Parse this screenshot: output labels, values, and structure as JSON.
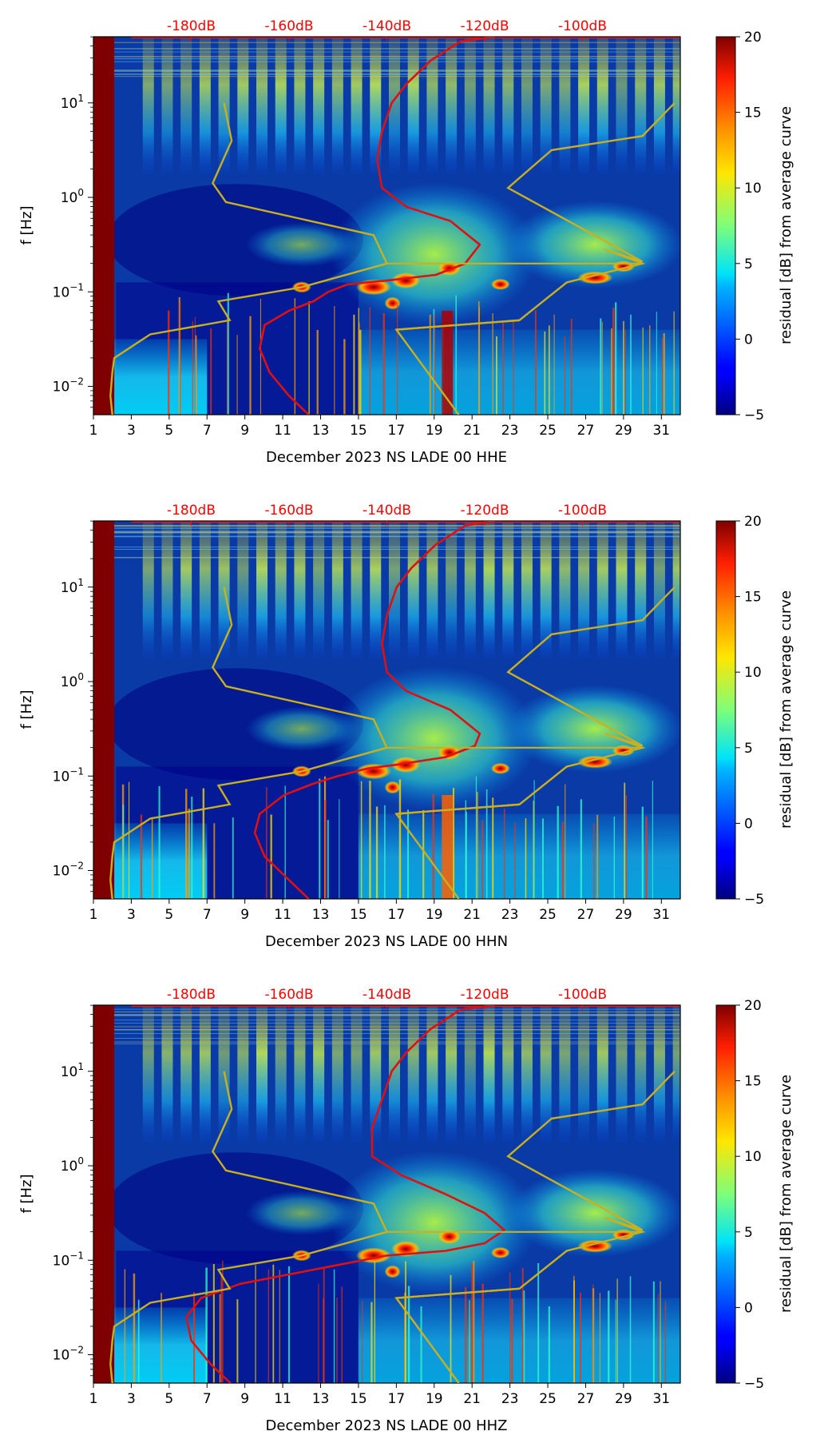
{
  "chart_data": [
    {
      "type": "heatmap",
      "xlabel": "December 2023 NS LADE 00 HHE",
      "ylabel": "f [Hz]",
      "xticks": [
        "1",
        "3",
        "5",
        "7",
        "9",
        "11",
        "13",
        "15",
        "17",
        "19",
        "21",
        "23",
        "25",
        "27",
        "29",
        "31"
      ],
      "x_range": [
        1,
        32
      ],
      "yticks": [
        {
          "v": -2,
          "base": "10",
          "exp": "−2"
        },
        {
          "v": -1,
          "base": "10",
          "exp": "−1"
        },
        {
          "v": 0,
          "base": "10",
          "exp": "0"
        },
        {
          "v": 1,
          "base": "10",
          "exp": "1"
        }
      ],
      "y_log_range": [
        -2.3,
        1.7
      ],
      "top_ticks": [
        "-180dB",
        "-160dB",
        "-140dB",
        "-120dB",
        "-100dB"
      ],
      "colorbar": {
        "label": "residual [dB] from average curve",
        "ticks": [
          "20",
          "15",
          "10",
          "5",
          "0",
          "−5"
        ],
        "range": [
          -5,
          20
        ]
      },
      "red_curve": [
        {
          "db": -156,
          "logf": -2.3
        },
        {
          "db": -160,
          "logf": -2.1
        },
        {
          "db": -164,
          "logf": -1.85
        },
        {
          "db": -166,
          "logf": -1.6
        },
        {
          "db": -165,
          "logf": -1.35
        },
        {
          "db": -160,
          "logf": -1.2
        },
        {
          "db": -155,
          "logf": -1.1
        },
        {
          "db": -152,
          "logf": -1.0
        },
        {
          "db": -148,
          "logf": -0.92
        },
        {
          "db": -140,
          "logf": -0.88
        },
        {
          "db": -130,
          "logf": -0.82
        },
        {
          "db": -124,
          "logf": -0.7
        },
        {
          "db": -121,
          "logf": -0.5
        },
        {
          "db": -127,
          "logf": -0.25
        },
        {
          "db": -136,
          "logf": -0.1
        },
        {
          "db": -141,
          "logf": 0.1
        },
        {
          "db": -142,
          "logf": 0.4
        },
        {
          "db": -141,
          "logf": 0.7
        },
        {
          "db": -139,
          "logf": 1.0
        },
        {
          "db": -136,
          "logf": 1.2
        },
        {
          "db": -131,
          "logf": 1.45
        },
        {
          "db": -125,
          "logf": 1.65
        },
        {
          "db": -118,
          "logf": 1.7
        }
      ],
      "yellow_curve": [
        {
          "x": 2.0,
          "logf": -2.3
        },
        {
          "x": 1.9,
          "logf": -2.1
        },
        {
          "x": 2.0,
          "logf": -1.85
        },
        {
          "x": 2.1,
          "logf": -1.7
        },
        {
          "x": 4.0,
          "logf": -1.45
        },
        {
          "x": 8.2,
          "logf": -1.3
        },
        {
          "x": 7.6,
          "logf": -1.1
        },
        {
          "x": 12.0,
          "logf": -0.95
        },
        {
          "x": 16.5,
          "logf": -0.7
        },
        {
          "x": 15.8,
          "logf": -0.4
        },
        {
          "x": 8.0,
          "logf": -0.05
        },
        {
          "x": 7.3,
          "logf": 0.15
        },
        {
          "x": 8.3,
          "logf": 0.6
        },
        {
          "x": 7.9,
          "logf": 1.0
        },
        {
          "x": 23.5,
          "logf": -1.3
        },
        {
          "x": 17.0,
          "logf": -1.4
        },
        {
          "x": 20.3,
          "logf": -2.3
        },
        {
          "x": 22.9,
          "logf": 0.1
        },
        {
          "x": 25.2,
          "logf": 0.5
        },
        {
          "x": 30.0,
          "logf": 0.65
        },
        {
          "x": 31.7,
          "logf": 1.0
        }
      ]
    },
    {
      "type": "heatmap",
      "xlabel": "December 2023 NS LADE 00 HHN",
      "ylabel": "f [Hz]",
      "xticks": [
        "1",
        "3",
        "5",
        "7",
        "9",
        "11",
        "13",
        "15",
        "17",
        "19",
        "21",
        "23",
        "25",
        "27",
        "29",
        "31"
      ],
      "x_range": [
        1,
        32
      ],
      "yticks": [
        {
          "v": -2,
          "base": "10",
          "exp": "−2"
        },
        {
          "v": -1,
          "base": "10",
          "exp": "−1"
        },
        {
          "v": 0,
          "base": "10",
          "exp": "0"
        },
        {
          "v": 1,
          "base": "10",
          "exp": "1"
        }
      ],
      "y_log_range": [
        -2.3,
        1.7
      ],
      "top_ticks": [
        "-180dB",
        "-160dB",
        "-140dB",
        "-120dB",
        "-100dB"
      ],
      "colorbar": {
        "label": "residual [dB] from average curve",
        "ticks": [
          "20",
          "15",
          "10",
          "5",
          "0",
          "−5"
        ],
        "range": [
          -5,
          20
        ]
      },
      "red_curve": [
        {
          "db": -156,
          "logf": -2.3
        },
        {
          "db": -160,
          "logf": -2.1
        },
        {
          "db": -165,
          "logf": -1.85
        },
        {
          "db": -167,
          "logf": -1.6
        },
        {
          "db": -166,
          "logf": -1.4
        },
        {
          "db": -161,
          "logf": -1.2
        },
        {
          "db": -155,
          "logf": -1.08
        },
        {
          "db": -150,
          "logf": -1.0
        },
        {
          "db": -144,
          "logf": -0.92
        },
        {
          "db": -138,
          "logf": -0.88
        },
        {
          "db": -128,
          "logf": -0.8
        },
        {
          "db": -122,
          "logf": -0.68
        },
        {
          "db": -121,
          "logf": -0.55
        },
        {
          "db": -127,
          "logf": -0.3
        },
        {
          "db": -136,
          "logf": -0.1
        },
        {
          "db": -140,
          "logf": 0.1
        },
        {
          "db": -141,
          "logf": 0.4
        },
        {
          "db": -140,
          "logf": 0.7
        },
        {
          "db": -138,
          "logf": 1.0
        },
        {
          "db": -135,
          "logf": 1.2
        },
        {
          "db": -130,
          "logf": 1.45
        },
        {
          "db": -124,
          "logf": 1.65
        },
        {
          "db": -118,
          "logf": 1.7
        }
      ],
      "yellow_curve": [
        {
          "x": 2.0,
          "logf": -2.3
        },
        {
          "x": 1.9,
          "logf": -2.1
        },
        {
          "x": 2.0,
          "logf": -1.85
        },
        {
          "x": 2.1,
          "logf": -1.7
        },
        {
          "x": 4.0,
          "logf": -1.45
        },
        {
          "x": 8.2,
          "logf": -1.3
        },
        {
          "x": 7.6,
          "logf": -1.1
        },
        {
          "x": 12.0,
          "logf": -0.95
        },
        {
          "x": 16.5,
          "logf": -0.7
        },
        {
          "x": 15.8,
          "logf": -0.4
        },
        {
          "x": 8.0,
          "logf": -0.05
        },
        {
          "x": 7.3,
          "logf": 0.15
        },
        {
          "x": 8.3,
          "logf": 0.6
        },
        {
          "x": 7.9,
          "logf": 1.0
        },
        {
          "x": 23.5,
          "logf": -1.3
        },
        {
          "x": 17.0,
          "logf": -1.4
        },
        {
          "x": 20.3,
          "logf": -2.3
        },
        {
          "x": 22.9,
          "logf": 0.1
        },
        {
          "x": 25.2,
          "logf": 0.5
        },
        {
          "x": 30.0,
          "logf": 0.65
        },
        {
          "x": 31.7,
          "logf": 1.0
        }
      ]
    },
    {
      "type": "heatmap",
      "xlabel": "December 2023 NS LADE 00 HHZ",
      "ylabel": "f [Hz]",
      "xticks": [
        "1",
        "3",
        "5",
        "7",
        "9",
        "11",
        "13",
        "15",
        "17",
        "19",
        "21",
        "23",
        "25",
        "27",
        "29",
        "31"
      ],
      "x_range": [
        1,
        32
      ],
      "yticks": [
        {
          "v": -2,
          "base": "10",
          "exp": "−2"
        },
        {
          "v": -1,
          "base": "10",
          "exp": "−1"
        },
        {
          "v": 0,
          "base": "10",
          "exp": "0"
        },
        {
          "v": 1,
          "base": "10",
          "exp": "1"
        }
      ],
      "y_log_range": [
        -2.3,
        1.7
      ],
      "top_ticks": [
        "-180dB",
        "-160dB",
        "-140dB",
        "-120dB",
        "-100dB"
      ],
      "colorbar": {
        "label": "residual [dB] from average curve",
        "ticks": [
          "20",
          "15",
          "10",
          "5",
          "0",
          "−5"
        ],
        "range": [
          -5,
          20
        ]
      },
      "red_curve": [
        {
          "db": -172,
          "logf": -2.3
        },
        {
          "db": -176,
          "logf": -2.1
        },
        {
          "db": -180,
          "logf": -1.85
        },
        {
          "db": -181,
          "logf": -1.6
        },
        {
          "db": -178,
          "logf": -1.4
        },
        {
          "db": -170,
          "logf": -1.25
        },
        {
          "db": -160,
          "logf": -1.15
        },
        {
          "db": -150,
          "logf": -1.05
        },
        {
          "db": -140,
          "logf": -0.95
        },
        {
          "db": -128,
          "logf": -0.9
        },
        {
          "db": -120,
          "logf": -0.82
        },
        {
          "db": -116,
          "logf": -0.68
        },
        {
          "db": -120,
          "logf": -0.5
        },
        {
          "db": -128,
          "logf": -0.3
        },
        {
          "db": -137,
          "logf": -0.1
        },
        {
          "db": -143,
          "logf": 0.1
        },
        {
          "db": -143,
          "logf": 0.4
        },
        {
          "db": -141,
          "logf": 0.7
        },
        {
          "db": -139,
          "logf": 1.0
        },
        {
          "db": -136,
          "logf": 1.2
        },
        {
          "db": -131,
          "logf": 1.45
        },
        {
          "db": -125,
          "logf": 1.65
        },
        {
          "db": -118,
          "logf": 1.7
        }
      ],
      "yellow_curve": [
        {
          "x": 2.0,
          "logf": -2.3
        },
        {
          "x": 1.9,
          "logf": -2.1
        },
        {
          "x": 2.0,
          "logf": -1.85
        },
        {
          "x": 2.1,
          "logf": -1.7
        },
        {
          "x": 4.0,
          "logf": -1.45
        },
        {
          "x": 8.2,
          "logf": -1.3
        },
        {
          "x": 7.6,
          "logf": -1.1
        },
        {
          "x": 12.0,
          "logf": -0.95
        },
        {
          "x": 16.5,
          "logf": -0.7
        },
        {
          "x": 15.8,
          "logf": -0.4
        },
        {
          "x": 8.0,
          "logf": -0.05
        },
        {
          "x": 7.3,
          "logf": 0.15
        },
        {
          "x": 8.3,
          "logf": 0.6
        },
        {
          "x": 7.9,
          "logf": 1.0
        },
        {
          "x": 23.5,
          "logf": -1.3
        },
        {
          "x": 17.0,
          "logf": -1.4
        },
        {
          "x": 20.3,
          "logf": -2.3
        },
        {
          "x": 22.9,
          "logf": 0.1
        },
        {
          "x": 25.2,
          "logf": 0.5
        },
        {
          "x": 30.0,
          "logf": 0.65
        },
        {
          "x": 31.7,
          "logf": 1.0
        }
      ]
    }
  ]
}
